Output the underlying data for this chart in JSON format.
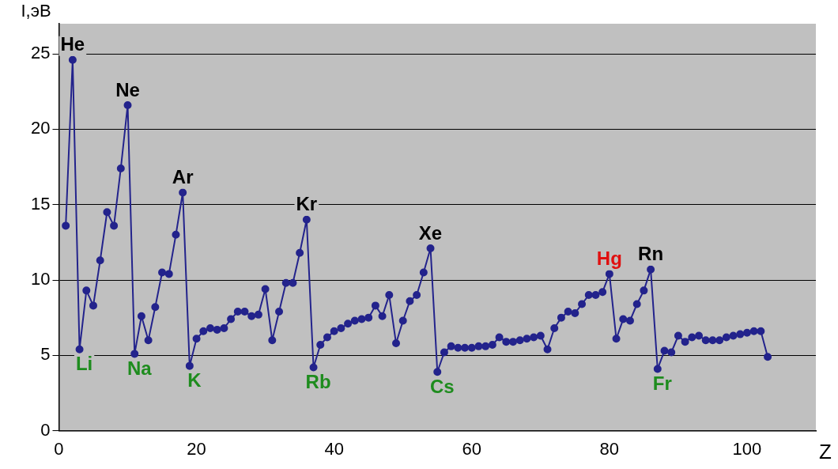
{
  "chart_data": {
    "type": "line",
    "xlabel": "Z",
    "ylabel": "I,эВ",
    "x": [
      1,
      2,
      3,
      4,
      5,
      6,
      7,
      8,
      9,
      10,
      11,
      12,
      13,
      14,
      15,
      16,
      17,
      18,
      19,
      20,
      21,
      22,
      23,
      24,
      25,
      26,
      27,
      28,
      29,
      30,
      31,
      32,
      33,
      34,
      35,
      36,
      37,
      38,
      39,
      40,
      41,
      42,
      43,
      44,
      45,
      46,
      47,
      48,
      49,
      50,
      51,
      52,
      53,
      54,
      55,
      56,
      57,
      58,
      59,
      60,
      61,
      62,
      63,
      64,
      65,
      66,
      67,
      68,
      69,
      70,
      71,
      72,
      73,
      74,
      75,
      76,
      77,
      78,
      79,
      80,
      81,
      82,
      83,
      84,
      85,
      86,
      87,
      88,
      89,
      90,
      91,
      92,
      93,
      94,
      95,
      96,
      97,
      98,
      99,
      100,
      101,
      102,
      103
    ],
    "series": [
      {
        "color": "#23238c",
        "values": [
          13.6,
          24.6,
          5.4,
          9.3,
          8.3,
          11.3,
          14.5,
          13.6,
          17.4,
          21.6,
          5.1,
          7.6,
          6.0,
          8.2,
          10.5,
          10.4,
          13.0,
          15.8,
          4.3,
          6.1,
          6.6,
          6.8,
          6.7,
          6.8,
          7.4,
          7.9,
          7.9,
          7.6,
          7.7,
          9.4,
          6.0,
          7.9,
          9.8,
          9.8,
          11.8,
          14.0,
          4.2,
          5.7,
          6.2,
          6.6,
          6.8,
          7.1,
          7.3,
          7.4,
          7.5,
          8.3,
          7.6,
          9.0,
          5.8,
          7.3,
          8.6,
          9.0,
          10.5,
          12.1,
          3.9,
          5.2,
          5.6,
          5.5,
          5.5,
          5.5,
          5.6,
          5.6,
          5.7,
          6.2,
          5.9,
          5.9,
          6.0,
          6.1,
          6.2,
          6.3,
          5.4,
          6.8,
          7.5,
          7.9,
          7.8,
          8.4,
          9.0,
          9.0,
          9.2,
          10.4,
          6.1,
          7.4,
          7.3,
          8.4,
          9.3,
          10.7,
          4.1,
          5.3,
          5.2,
          6.3,
          5.9,
          6.2,
          6.3,
          6.0,
          6.0,
          6.0,
          6.2,
          6.3,
          6.4,
          6.5,
          6.6,
          6.6,
          4.9
        ]
      }
    ],
    "xlim": [
      0,
      110
    ],
    "xticks": [
      0,
      20,
      40,
      60,
      80,
      100
    ],
    "ylim": [
      0,
      27
    ],
    "yticks": [
      0,
      5,
      10,
      15,
      20,
      25
    ],
    "grid": "y",
    "legend": false,
    "marker": "circle",
    "line_style": "solid",
    "annotations": [
      {
        "text": "He",
        "x": 2,
        "y": 24.6
      },
      {
        "text": "Ne",
        "x": 10,
        "y": 21.6
      },
      {
        "text": "Ar",
        "x": 18,
        "y": 15.8
      },
      {
        "text": "Kr",
        "x": 36,
        "y": 14.0
      },
      {
        "text": "Xe",
        "x": 54,
        "y": 12.1
      },
      {
        "text": "Hg",
        "x": 80,
        "y": 10.4
      },
      {
        "text": "Rn",
        "x": 86,
        "y": 10.7
      },
      {
        "text": "Li",
        "x": 3,
        "y": 5.4
      },
      {
        "text": "Na",
        "x": 11,
        "y": 5.1
      },
      {
        "text": "K",
        "x": 19,
        "y": 4.3
      },
      {
        "text": "Rb",
        "x": 37,
        "y": 4.2
      },
      {
        "text": "Cs",
        "x": 55,
        "y": 3.9
      },
      {
        "text": "Fr",
        "x": 87,
        "y": 4.1
      }
    ]
  }
}
